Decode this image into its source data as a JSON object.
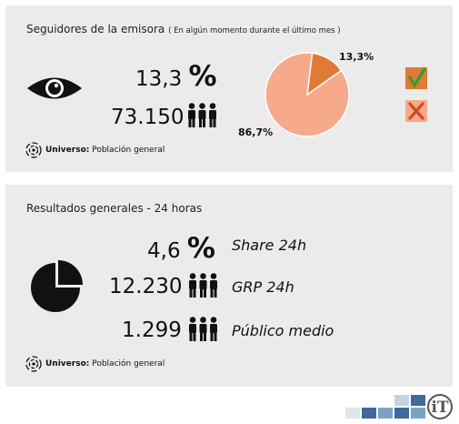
{
  "panel1": {
    "title": "Seguidores de la emisora",
    "subtitle": "( En algún momento durante el último mes )",
    "percent_value": "13,3",
    "percent_sign": "%",
    "count": "73.150",
    "universe_label": "Universo:",
    "universe_value": "Población general",
    "pie_yes_label": "13,3%",
    "pie_no_label": "86,7%",
    "icons": [
      "eye-icon",
      "people-icon",
      "checkmark-icon",
      "cross-icon"
    ],
    "colors": {
      "yes": "#e07a35",
      "no": "#f7a98b",
      "check": "#2e9e2e",
      "cross": "#d24a1e"
    }
  },
  "panel2": {
    "title": "Resultados generales - 24 horas",
    "rows": [
      {
        "value": "4,6",
        "suffix": "%",
        "label": "Share 24h"
      },
      {
        "value": "12.230",
        "label": "GRP 24h"
      },
      {
        "value": "1.299",
        "label": "Público medio"
      }
    ],
    "universe_label": "Universo:",
    "universe_value": "Población general",
    "icons": [
      "pie-icon",
      "people-icon"
    ]
  },
  "chart_data": {
    "type": "pie",
    "slices": [
      {
        "value": 13.3,
        "label": "13,3%",
        "color": "#e07a35"
      },
      {
        "value": 86.7,
        "label": "86,7%",
        "color": "#f7a98b"
      }
    ]
  }
}
